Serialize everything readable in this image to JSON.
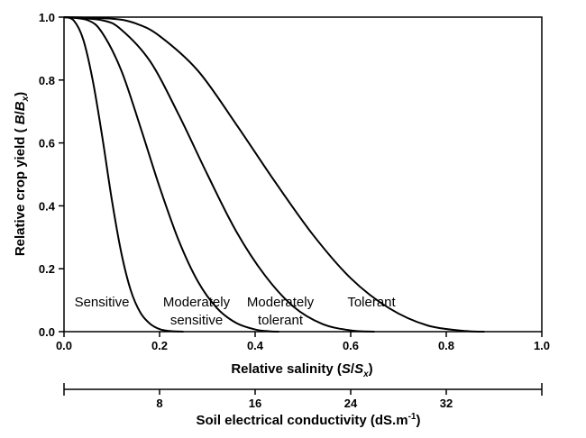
{
  "chart_data": {
    "type": "line",
    "xlim": [
      0.0,
      1.0
    ],
    "ylim": [
      0.0,
      1.0
    ],
    "x_ticks": [
      "0.0",
      "0.2",
      "0.4",
      "0.6",
      "0.8",
      "1.0"
    ],
    "y_ticks": [
      "0.0",
      "0.2",
      "0.4",
      "0.6",
      "0.8",
      "1.0"
    ],
    "grid": false,
    "xlabel": {
      "prefix": "Relative salinity (",
      "v1": "S",
      "sep": "/",
      "v2": "S",
      "sub": "x",
      "suffix": ")"
    },
    "ylabel": {
      "prefix": "Relative crop yield ( ",
      "v1": "B",
      "sep": "/",
      "v2": "B",
      "sub": "x",
      "suffix": ")"
    },
    "secondary_axis": {
      "label": {
        "text": "Soil electrical conductivity (dS.m",
        "sup": "-1",
        "suffix": ")"
      },
      "tick_labels": [
        "8",
        "16",
        "24",
        "32"
      ],
      "tick_values": [
        8,
        16,
        24,
        32
      ],
      "range": [
        0,
        40
      ]
    },
    "series": [
      {
        "name": "Sensitive",
        "label_lines": [
          "Sensitive"
        ],
        "x": [
          0.0,
          0.02,
          0.04,
          0.06,
          0.08,
          0.1,
          0.12,
          0.14,
          0.16,
          0.18,
          0.2,
          0.22,
          0.25
        ],
        "y": [
          1.0,
          0.99,
          0.93,
          0.8,
          0.62,
          0.42,
          0.25,
          0.13,
          0.06,
          0.025,
          0.008,
          0.002,
          0.0
        ]
      },
      {
        "name": "Moderately sensitive",
        "label_lines": [
          "Moderately",
          "sensitive"
        ],
        "x": [
          0.0,
          0.05,
          0.08,
          0.12,
          0.16,
          0.2,
          0.24,
          0.28,
          0.32,
          0.36,
          0.4,
          0.43,
          0.45
        ],
        "y": [
          1.0,
          0.99,
          0.95,
          0.83,
          0.65,
          0.46,
          0.29,
          0.16,
          0.075,
          0.028,
          0.007,
          0.001,
          0.0
        ]
      },
      {
        "name": "Moderately tolerant",
        "label_lines": [
          "Moderately",
          "tolerant"
        ],
        "x": [
          0.0,
          0.08,
          0.12,
          0.18,
          0.24,
          0.3,
          0.36,
          0.42,
          0.48,
          0.54,
          0.6,
          0.65
        ],
        "y": [
          1.0,
          0.99,
          0.96,
          0.86,
          0.69,
          0.5,
          0.32,
          0.18,
          0.08,
          0.025,
          0.004,
          0.0
        ]
      },
      {
        "name": "Tolerant",
        "label_lines": [
          "Tolerant"
        ],
        "x": [
          0.0,
          0.1,
          0.15,
          0.2,
          0.28,
          0.36,
          0.44,
          0.52,
          0.6,
          0.68,
          0.76,
          0.84,
          0.88
        ],
        "y": [
          1.0,
          0.995,
          0.98,
          0.94,
          0.83,
          0.66,
          0.48,
          0.31,
          0.17,
          0.075,
          0.02,
          0.002,
          0.0
        ]
      }
    ]
  }
}
